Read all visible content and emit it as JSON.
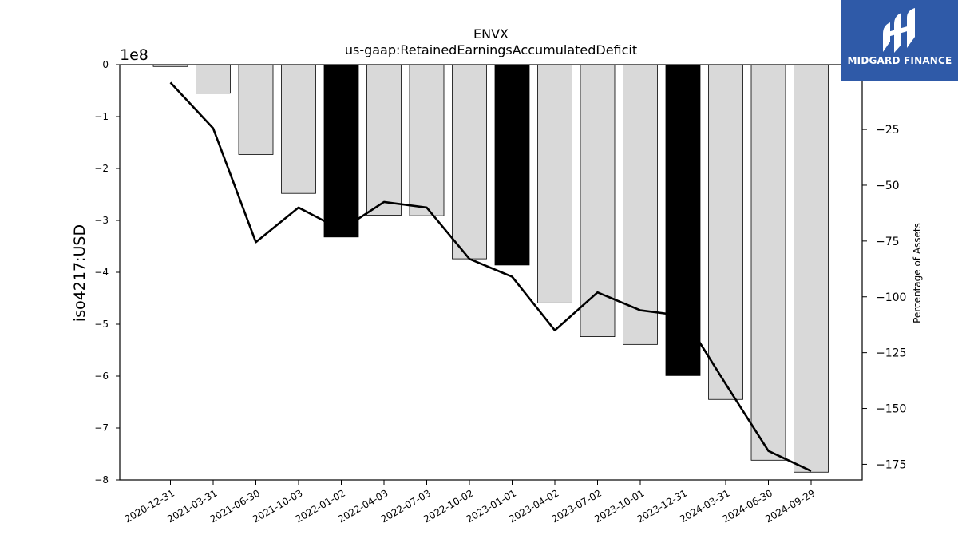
{
  "chart_data": {
    "type": "bar",
    "title": "ENVX",
    "subtitle": "us-gaap:RetainedEarningsAccumulatedDeficit",
    "ylabel": "iso4217:USD",
    "y_offset_text": "1e8",
    "y2label": "Percentage of Assets",
    "categories": [
      "2020-12-31",
      "2021-03-31",
      "2021-06-30",
      "2021-10-03",
      "2022-01-02",
      "2022-04-03",
      "2022-07-03",
      "2022-10-02",
      "2023-01-01",
      "2023-04-02",
      "2023-07-02",
      "2023-10-01",
      "2023-12-31",
      "2024-03-31",
      "2024-06-30",
      "2024-09-29"
    ],
    "values": [
      -3500000,
      -55000000,
      -173000000,
      -248000000,
      -332000000,
      -290000000,
      -291000000,
      -374000000,
      -386000000,
      -459000000,
      -524000000,
      -539000000,
      -599000000,
      -645000000,
      -762000000,
      -785000000
    ],
    "fiscal_year_end_bars": [
      false,
      false,
      false,
      false,
      true,
      false,
      false,
      false,
      true,
      false,
      false,
      false,
      true,
      false,
      false,
      false
    ],
    "line_values": [
      -4,
      -24.5,
      -75.5,
      -60,
      -70,
      -57.5,
      -60,
      -83,
      -91,
      -115,
      -98,
      -106,
      -108.5,
      -139,
      -169,
      -178
    ],
    "ylim": [
      -800000000,
      0
    ],
    "y2lim": [
      -182,
      4
    ],
    "yticks": [
      0,
      -1,
      -2,
      -3,
      -4,
      -5,
      -6,
      -7,
      -8
    ],
    "y2ticks": [
      -25,
      -50,
      -75,
      -100,
      -125,
      -150,
      -175
    ],
    "colors": {
      "bar": "#d9d9d9",
      "bar_highlight": "#000000",
      "line": "#000000",
      "edge": "#000000"
    },
    "grid": false
  },
  "logo": {
    "text": "MIDGARD FINANCE",
    "icon": "midgard-logo-icon",
    "background": "#2f5aa8"
  }
}
